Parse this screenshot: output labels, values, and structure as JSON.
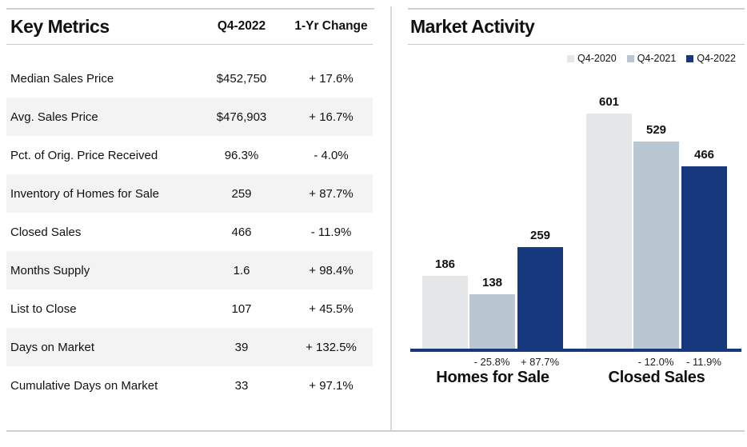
{
  "key_metrics": {
    "title": "Key Metrics",
    "columns": [
      "Q4-2022",
      "1-Yr Change"
    ],
    "rows": [
      {
        "label": "Median Sales Price",
        "value": "$452,750",
        "change": "+ 17.6%"
      },
      {
        "label": "Avg. Sales Price",
        "value": "$476,903",
        "change": "+ 16.7%"
      },
      {
        "label": "Pct. of Orig. Price Received",
        "value": "96.3%",
        "change": "- 4.0%"
      },
      {
        "label": "Inventory of Homes for Sale",
        "value": "259",
        "change": "+ 87.7%"
      },
      {
        "label": "Closed Sales",
        "value": "466",
        "change": "- 11.9%"
      },
      {
        "label": "Months Supply",
        "value": "1.6",
        "change": "+ 98.4%"
      },
      {
        "label": "List to Close",
        "value": "107",
        "change": "+ 45.5%"
      },
      {
        "label": "Days on Market",
        "value": "39",
        "change": "+ 132.5%"
      },
      {
        "label": "Cumulative Days on Market",
        "value": "33",
        "change": "+ 97.1%"
      }
    ]
  },
  "chart_data": {
    "type": "bar",
    "title": "Market Activity",
    "categories": [
      "Homes for Sale",
      "Closed Sales"
    ],
    "series": [
      {
        "name": "Q4-2020",
        "color": "#e4e6e7",
        "values": [
          186,
          601
        ]
      },
      {
        "name": "Q4-2021",
        "color": "#b9c7d2",
        "values": [
          138,
          529
        ]
      },
      {
        "name": "Q4-2022",
        "color": "#16387c",
        "values": [
          259,
          466
        ]
      }
    ],
    "pct_change_labels": [
      {
        "series": "Q4-2021",
        "category": "Homes for Sale",
        "label": "- 25.8%"
      },
      {
        "series": "Q4-2022",
        "category": "Homes for Sale",
        "label": "+ 87.7%"
      },
      {
        "series": "Q4-2021",
        "category": "Closed Sales",
        "label": "- 12.0%"
      },
      {
        "series": "Q4-2022",
        "category": "Closed Sales",
        "label": "- 11.9%"
      }
    ],
    "ylim": [
      0,
      620
    ],
    "grid": false,
    "legend_position": "top-right",
    "axis_color": "#16387c"
  }
}
